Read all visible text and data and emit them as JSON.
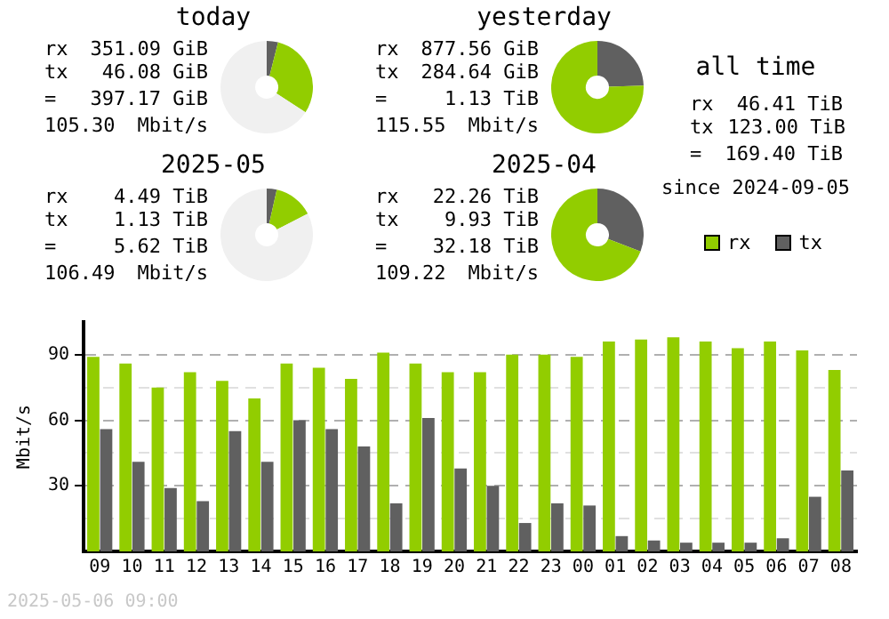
{
  "chart_data": [
    {
      "type": "donut",
      "title": "today",
      "categories": [
        null,
        null,
        null
      ],
      "values": [
        3.96,
        30.21,
        65.83
      ],
      "colors": [
        "#606060",
        "#92cd00",
        "#f0f0f0"
      ],
      "annotations": [
        "rx 351.09 GiB",
        "tx 46.08 GiB",
        "= 397.17 GiB",
        "105.30 Mbit/s"
      ]
    },
    {
      "type": "donut",
      "title": "yesterday",
      "categories": [
        null,
        null,
        null
      ],
      "values": [
        24.49,
        75.51,
        0
      ],
      "colors": [
        "#606060",
        "#92cd00",
        "#f0f0f0"
      ],
      "annotations": [
        "rx 877.56 GiB",
        "tx 284.64 GiB",
        "= 1.13 TiB",
        "115.55 Mbit/s"
      ]
    },
    {
      "type": "other",
      "title": "all time",
      "annotations": [
        "rx 46.41 TiB",
        "tx 123.00 TiB",
        "= 169.40 TiB",
        "since 2024-09-05"
      ]
    },
    {
      "type": "donut",
      "title": "2025-05",
      "categories": [
        null,
        null,
        null
      ],
      "values": [
        3.51,
        13.95,
        82.54
      ],
      "colors": [
        "#606060",
        "#92cd00",
        "#f0f0f0"
      ],
      "annotations": [
        "rx 4.49 TiB",
        "tx 1.13 TiB",
        "= 5.62 TiB",
        "106.49 Mbit/s"
      ]
    },
    {
      "type": "donut",
      "title": "2025-04",
      "categories": [
        null,
        null,
        null
      ],
      "values": [
        30.86,
        69.14,
        0
      ],
      "colors": [
        "#606060",
        "#92cd00",
        "#f0f0f0"
      ],
      "annotations": [
        "rx 22.26 TiB",
        "tx 9.93 TiB",
        "= 32.18 TiB",
        "109.22 Mbit/s"
      ]
    },
    {
      "type": "bar",
      "ylabel": "Mbit/s",
      "categories": [
        "09",
        "10",
        "11",
        "12",
        "13",
        "14",
        "15",
        "16",
        "17",
        "18",
        "19",
        "20",
        "21",
        "22",
        "23",
        "00",
        "01",
        "02",
        "03",
        "04",
        "05",
        "06",
        "07",
        "08"
      ],
      "series": [
        {
          "name": "rx",
          "color": "#92cd00",
          "values": [
            89,
            86,
            75,
            82,
            78,
            70,
            86,
            84,
            79,
            91,
            86,
            82,
            82,
            90,
            90,
            89,
            96,
            97,
            98,
            96,
            93,
            96,
            92,
            83
          ]
        },
        {
          "name": "tx",
          "color": "#606060",
          "values": [
            56,
            41,
            29,
            23,
            55,
            41,
            60,
            56,
            48,
            22,
            61,
            38,
            30,
            13,
            22,
            21,
            7,
            5,
            4,
            4,
            4,
            6,
            25,
            37
          ]
        }
      ],
      "ylim": [
        0,
        105
      ],
      "yticks": [
        {
          "value": 15,
          "label": null
        },
        30,
        {
          "value": 45,
          "label": null
        },
        60,
        {
          "value": 75,
          "label": null
        },
        90
      ],
      "grid": "y",
      "legend": "top right",
      "annotations": [
        "2025-05-06 09:00"
      ]
    }
  ]
}
